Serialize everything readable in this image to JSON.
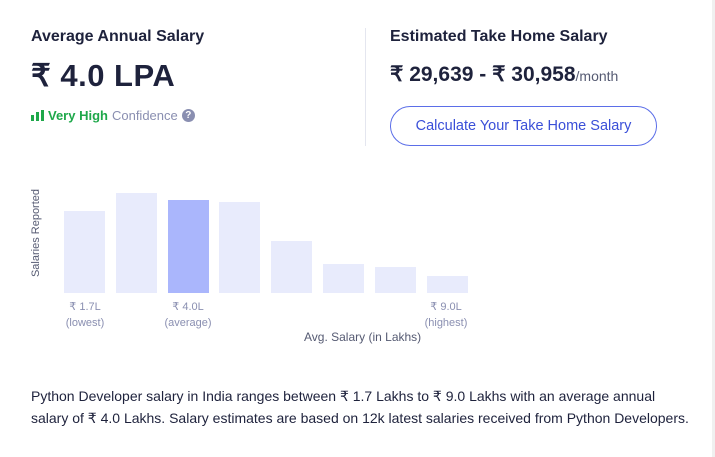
{
  "left": {
    "title": "Average Annual Salary",
    "value": "₹ 4.0 LPA",
    "confidence_level": "Very High",
    "confidence_label": "Confidence",
    "help": "?"
  },
  "right": {
    "title": "Estimated Take Home Salary",
    "range": "₹ 29,639 - ₹ 30,958",
    "period": "/month",
    "button": "Calculate Your Take Home Salary"
  },
  "chart_data": {
    "type": "bar",
    "ylabel": "Salaries Reported",
    "xlabel": "Avg. Salary (in Lakhs)",
    "values": [
      82,
      100,
      93,
      91,
      52,
      29,
      26,
      17
    ],
    "highlight_index": 2,
    "ticks": [
      {
        "value": "₹ 1.7L",
        "note": "(lowest)"
      },
      {
        "value": "₹ 4.0L",
        "note": "(average)"
      },
      {
        "value": "₹ 9.0L",
        "note": "(highest)"
      }
    ],
    "colors": {
      "bar": "#e8ebfc",
      "highlight": "#aab6fc"
    }
  },
  "description": "Python Developer salary in India ranges between ₹ 1.7 Lakhs to ₹ 9.0 Lakhs with an average annual salary of ₹ 4.0 Lakhs. Salary estimates are based on 12k latest salaries received from Python Developers."
}
